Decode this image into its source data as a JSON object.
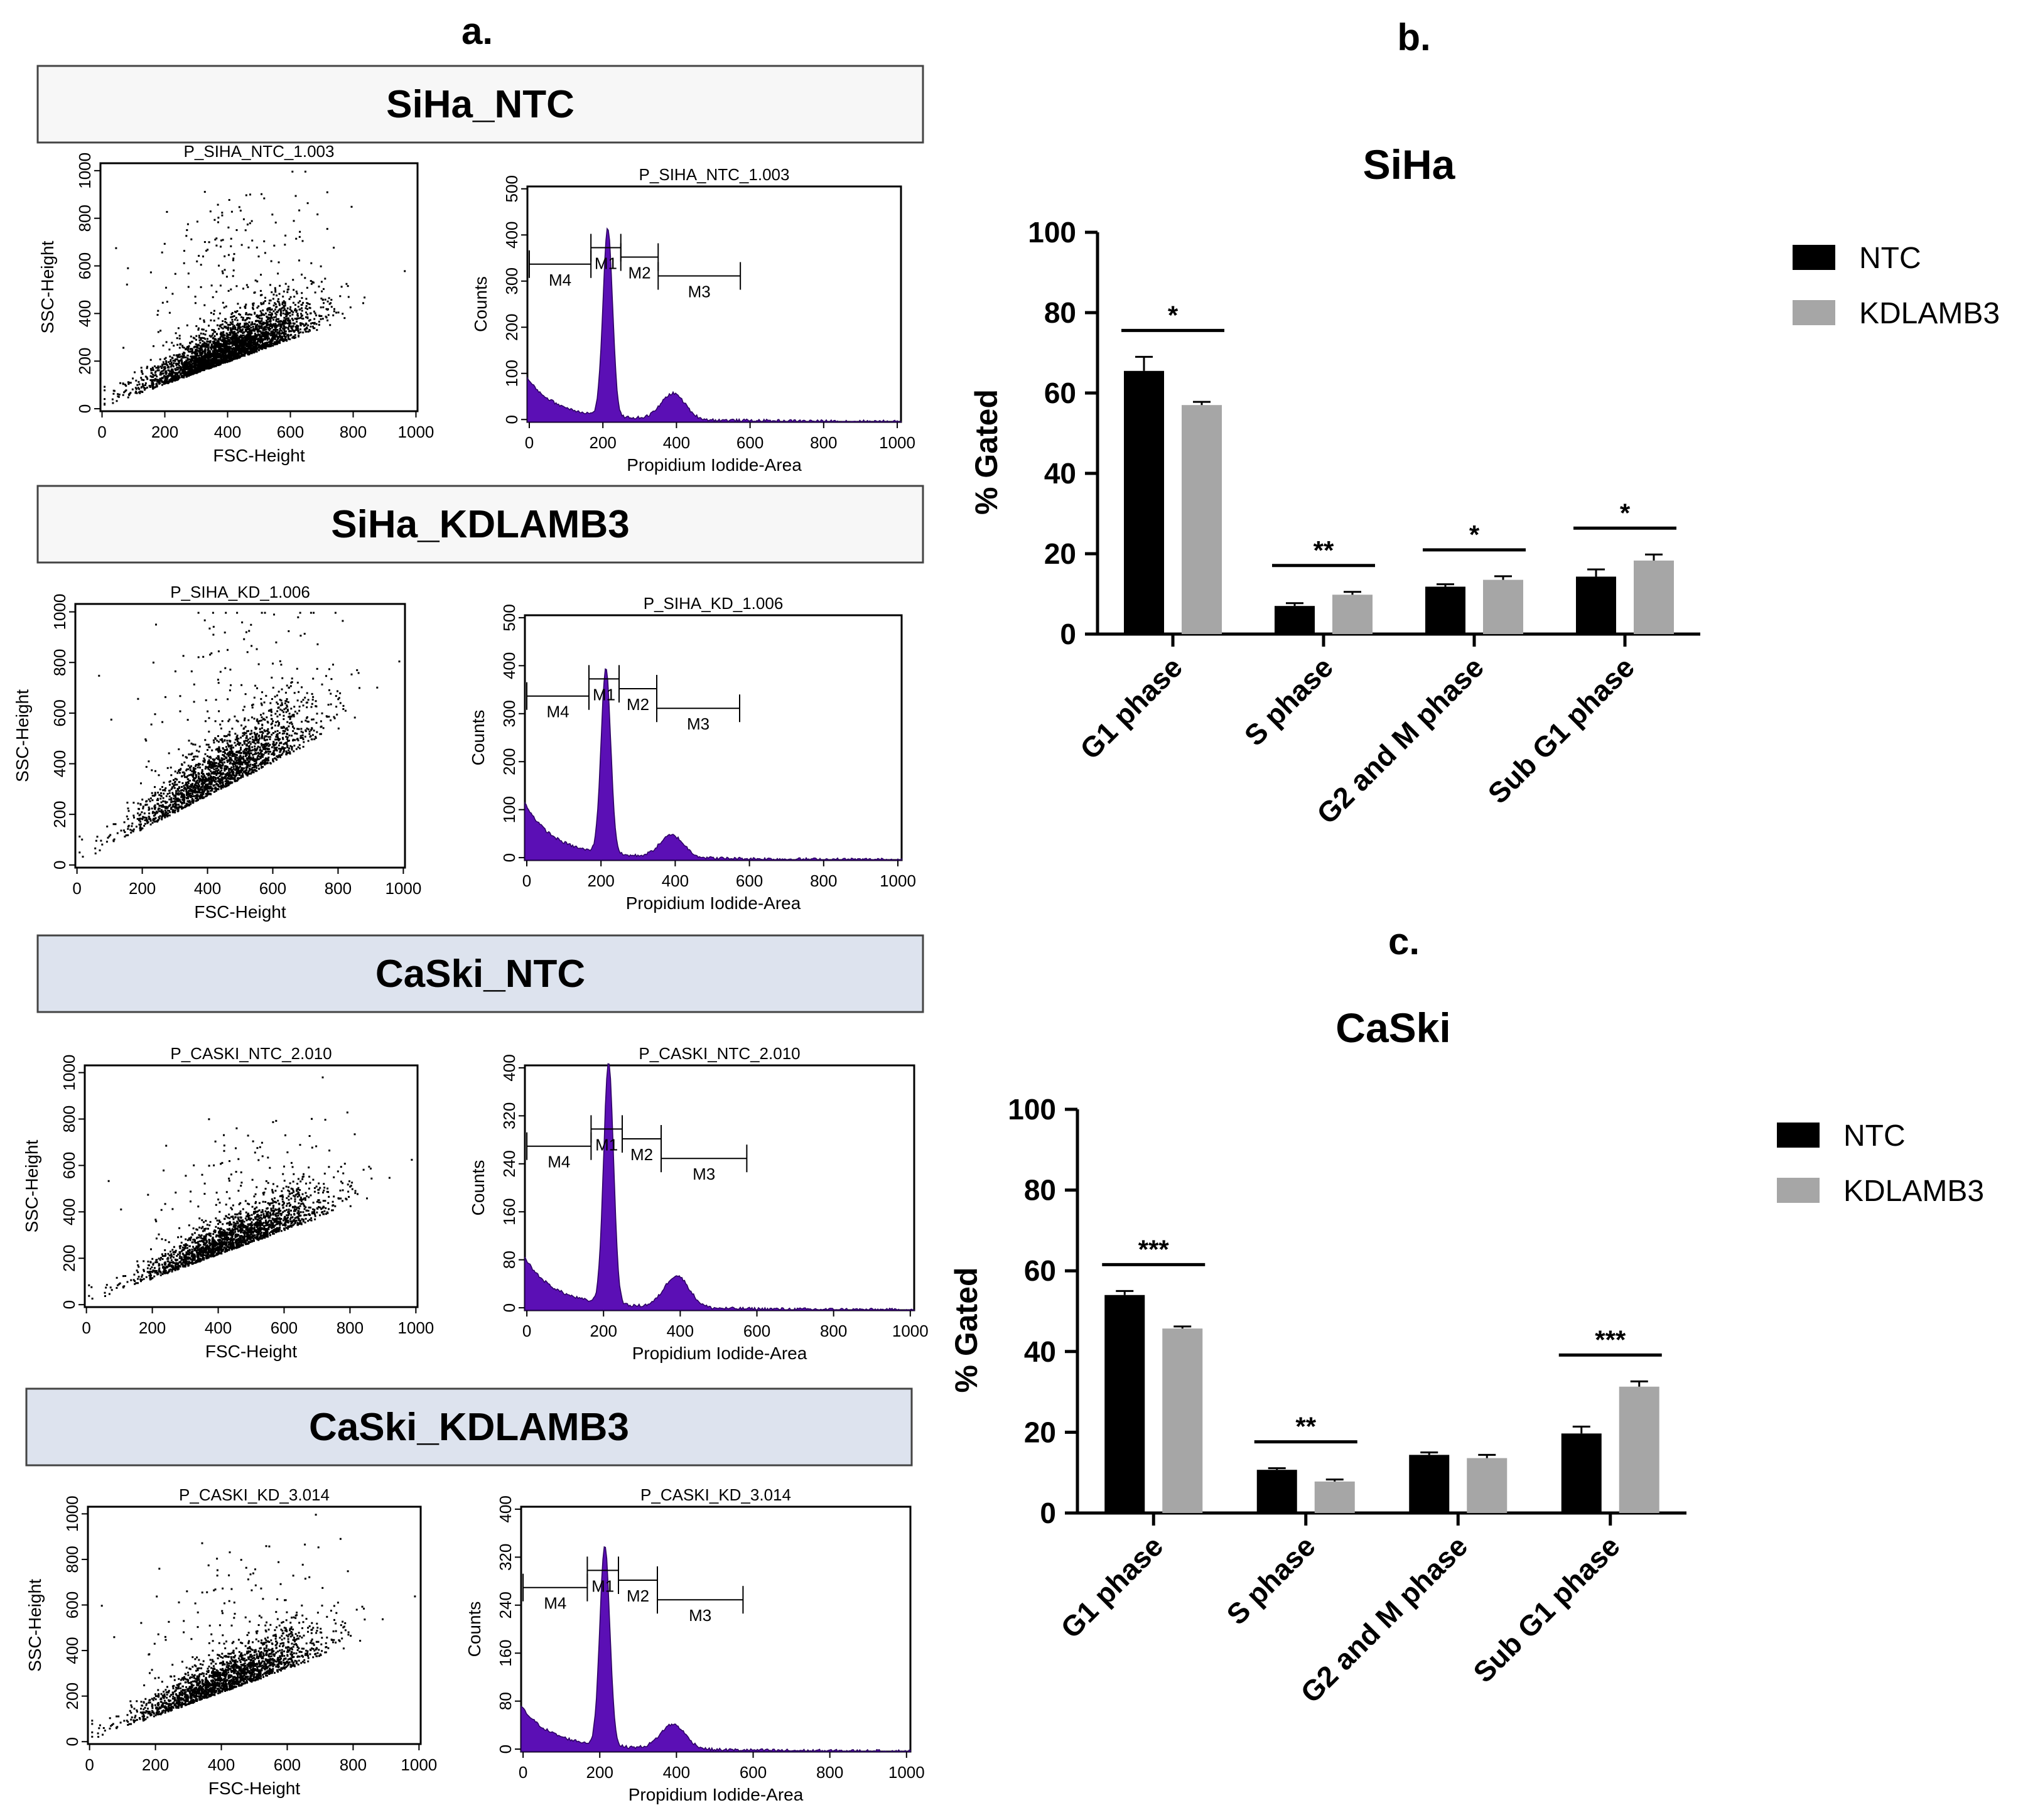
{
  "panel_letters": {
    "a": "a.",
    "b": "b.",
    "c": "c."
  },
  "colors": {
    "ntc": "#000000",
    "kd": "#a6a6a6",
    "hist_fill": "#5b0fb5",
    "header_white": "#f7f7f7",
    "header_blue": "#dde3ee"
  },
  "flow_panels": [
    {
      "header": "SiHa_NTC",
      "scatter": {
        "title": "P_SIHA_NTC_1.003",
        "xlabel": "FSC-Height",
        "ylabel": "SSC-Height",
        "xticks": [
          "0",
          "200",
          "400",
          "600",
          "800",
          "1000"
        ],
        "yticks": [
          "0",
          "200",
          "400",
          "600",
          "800",
          "1000"
        ]
      },
      "histogram": {
        "title": "P_SIHA_NTC_1.003",
        "xlabel": "Propidium Iodide-Area",
        "ylabel": "Counts",
        "xticks": [
          "0",
          "200",
          "400",
          "600",
          "800",
          "1000"
        ],
        "yticks": [
          "0",
          "100",
          "200",
          "300",
          "400",
          "500"
        ],
        "gates": [
          "M4",
          "M1",
          "M2",
          "M3"
        ]
      }
    },
    {
      "header": "SiHa_KDLAMB3",
      "scatter": {
        "title": "P_SIHA_KD_1.006",
        "xlabel": "FSC-Height",
        "ylabel": "SSC-Height",
        "xticks": [
          "0",
          "200",
          "400",
          "600",
          "800",
          "1000"
        ],
        "yticks": [
          "0",
          "200",
          "400",
          "600",
          "800",
          "1000"
        ]
      },
      "histogram": {
        "title": "P_SIHA_KD_1.006",
        "xlabel": "Propidium Iodide-Area",
        "ylabel": "Counts",
        "xticks": [
          "0",
          "200",
          "400",
          "600",
          "800",
          "1000"
        ],
        "yticks": [
          "0",
          "100",
          "200",
          "300",
          "400",
          "500"
        ],
        "gates": [
          "M4",
          "M1",
          "M2",
          "M3"
        ]
      }
    },
    {
      "header": "CaSki_NTC",
      "scatter": {
        "title": "P_CASKI_NTC_2.010",
        "xlabel": "FSC-Height",
        "ylabel": "SSC-Height",
        "xticks": [
          "0",
          "200",
          "400",
          "600",
          "800",
          "1000"
        ],
        "yticks": [
          "0",
          "200",
          "400",
          "600",
          "800",
          "1000"
        ]
      },
      "histogram": {
        "title": "P_CASKI_NTC_2.010",
        "xlabel": "Propidium Iodide-Area",
        "ylabel": "Counts",
        "xticks": [
          "0",
          "200",
          "400",
          "600",
          "800",
          "1000"
        ],
        "yticks": [
          "0",
          "80",
          "160",
          "240",
          "320",
          "400"
        ],
        "gates": [
          "M4",
          "M1",
          "M2",
          "M3"
        ]
      }
    },
    {
      "header": "CaSki_KDLAMB3",
      "scatter": {
        "title": "P_CASKI_KD_3.014",
        "xlabel": "FSC-Height",
        "ylabel": "SSC-Height",
        "xticks": [
          "0",
          "200",
          "400",
          "600",
          "800",
          "1000"
        ],
        "yticks": [
          "0",
          "200",
          "400",
          "600",
          "800",
          "1000"
        ]
      },
      "histogram": {
        "title": "P_CASKI_KD_3.014",
        "xlabel": "Propidium Iodide-Area",
        "ylabel": "Counts",
        "xticks": [
          "0",
          "200",
          "400",
          "600",
          "800",
          "1000"
        ],
        "yticks": [
          "0",
          "80",
          "160",
          "240",
          "320",
          "400"
        ],
        "gates": [
          "M4",
          "M1",
          "M2",
          "M3"
        ]
      }
    }
  ],
  "chart_data": [
    {
      "type": "bar",
      "title": "SiHa",
      "ylabel": "% Gated",
      "xlabel": "",
      "ylim": [
        0,
        100
      ],
      "yticks": [
        0,
        20,
        40,
        60,
        80,
        100
      ],
      "categories": [
        "G1 phase",
        "S phase",
        "G2 and M phase",
        "Sub G1 phase"
      ],
      "series": [
        {
          "name": "NTC",
          "values": [
            65.5,
            7.0,
            11.8,
            14.3
          ],
          "errors": [
            3.5,
            0.7,
            0.6,
            1.8
          ]
        },
        {
          "name": "KDLAMB3",
          "values": [
            57.0,
            9.8,
            13.5,
            18.3
          ],
          "errors": [
            0.8,
            0.7,
            0.9,
            1.5
          ]
        }
      ],
      "significance": [
        "*",
        "**",
        "*",
        "*"
      ],
      "legend": "top-right"
    },
    {
      "type": "bar",
      "title": "CaSki",
      "ylabel": "% Gated",
      "xlabel": "",
      "ylim": [
        0,
        100
      ],
      "yticks": [
        0,
        20,
        40,
        60,
        80,
        100
      ],
      "categories": [
        "G1 phase",
        "S phase",
        "G2 and M phase",
        "Sub G1 phase"
      ],
      "series": [
        {
          "name": "NTC",
          "values": [
            54.0,
            10.7,
            14.4,
            19.7
          ],
          "errors": [
            1.0,
            0.4,
            0.6,
            1.7
          ]
        },
        {
          "name": "KDLAMB3",
          "values": [
            45.7,
            7.8,
            13.6,
            31.3
          ],
          "errors": [
            0.5,
            0.5,
            0.8,
            1.3
          ]
        }
      ],
      "significance": [
        "***",
        "**",
        "",
        "***"
      ],
      "legend": "top-right"
    }
  ]
}
